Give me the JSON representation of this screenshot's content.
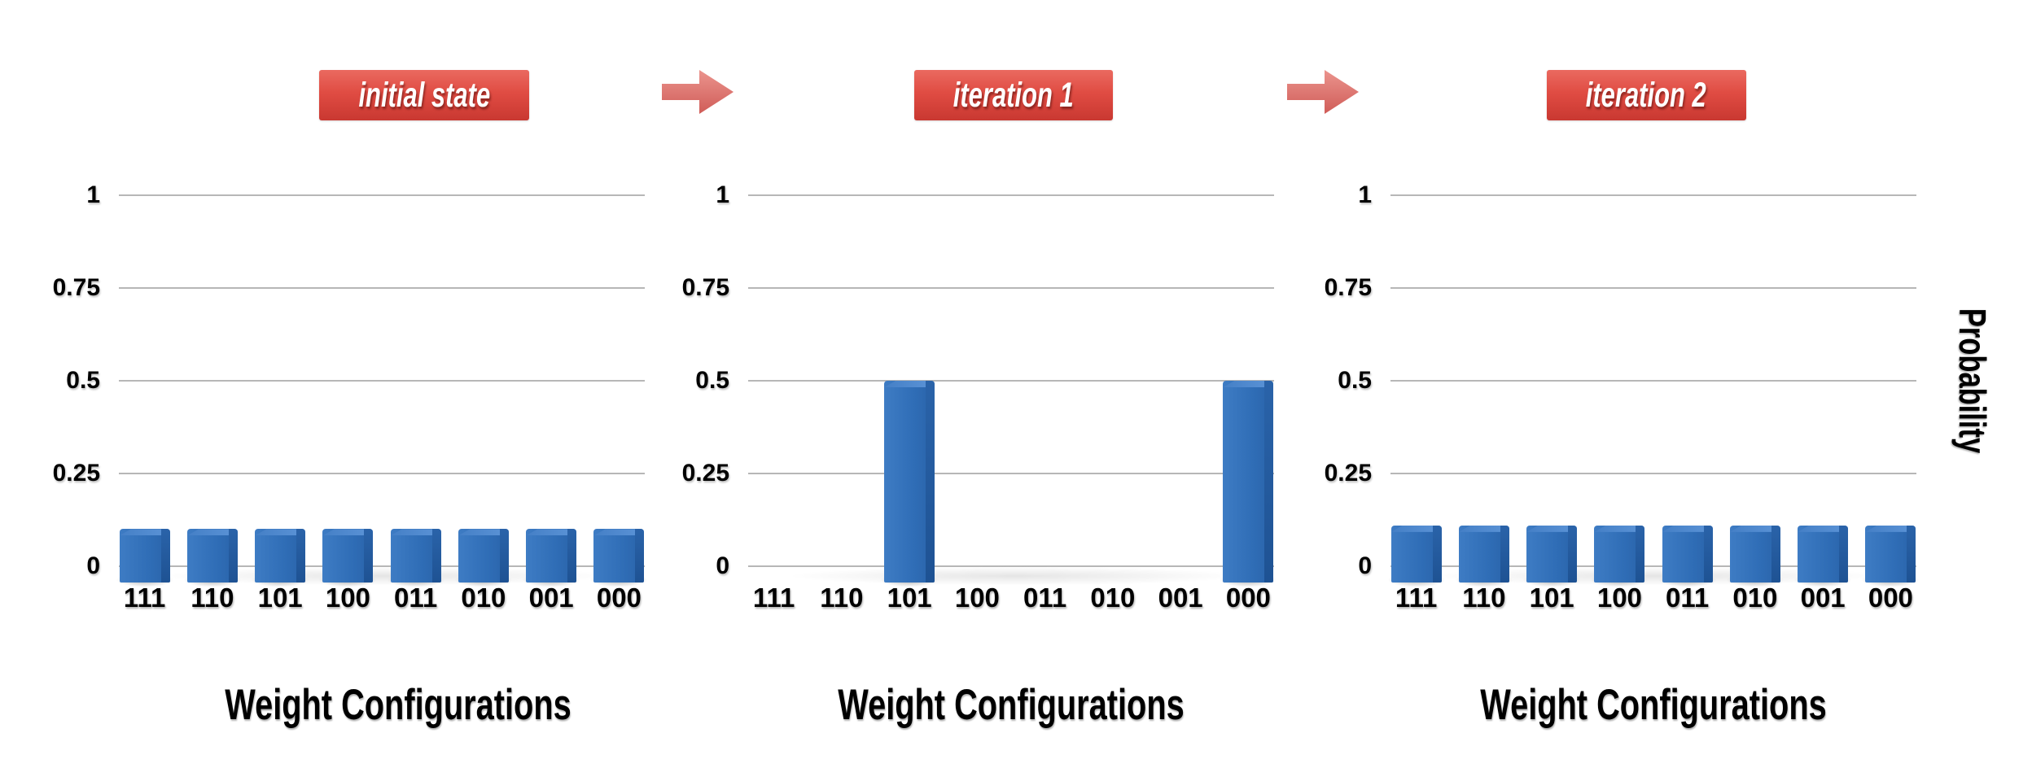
{
  "figure": {
    "y_axis_title": "Probability",
    "x_axis_title": "Weight Configurations",
    "stage_labels": [
      "initial state",
      "iteration 1",
      "iteration 2"
    ],
    "transition_icon": "right-arrow"
  },
  "colors": {
    "bar_front": "#2f6db6",
    "bar_front_light": "#3e7cc4",
    "bar_side": "#1e5293",
    "bar_top": "#5c94d7",
    "badge_top": "#ea6a60",
    "badge_bottom": "#c93831",
    "badge_text": "#ffffff",
    "arrow_top": "#eb948e",
    "arrow_bottom": "#d05c58",
    "gridline": "#b7b7b7",
    "text": "#000000",
    "background": "#ffffff"
  },
  "chart_data": [
    {
      "type": "bar",
      "title": "initial state",
      "categories": [
        "111",
        "110",
        "101",
        "100",
        "011",
        "010",
        "001",
        "000"
      ],
      "values": [
        0.1,
        0.1,
        0.1,
        0.1,
        0.1,
        0.1,
        0.1,
        0.1
      ],
      "xlabel": "Weight Configurations",
      "ylabel": "Probability",
      "ylim": [
        0,
        1
      ],
      "yticks": [
        "1",
        "0.75",
        "0.5",
        "0.25",
        "0"
      ],
      "ytick_values": [
        1,
        0.75,
        0.5,
        0.25,
        0
      ],
      "grid": true,
      "legend": false,
      "bar_color": "#2f6db6"
    },
    {
      "type": "bar",
      "title": "iteration 1",
      "categories": [
        "111",
        "110",
        "101",
        "100",
        "011",
        "010",
        "001",
        "000"
      ],
      "values": [
        0,
        0,
        0.5,
        0,
        0,
        0,
        0,
        0.5
      ],
      "xlabel": "Weight Configurations",
      "ylabel": "Probability",
      "ylim": [
        0,
        1
      ],
      "yticks": [
        "1",
        "0.75",
        "0.5",
        "0.25",
        "0"
      ],
      "ytick_values": [
        1,
        0.75,
        0.5,
        0.25,
        0
      ],
      "grid": true,
      "legend": false,
      "bar_color": "#2f6db6"
    },
    {
      "type": "bar",
      "title": "iteration 2",
      "categories": [
        "111",
        "110",
        "101",
        "100",
        "011",
        "010",
        "001",
        "000"
      ],
      "values": [
        0.11,
        0.11,
        0.11,
        0.11,
        0.11,
        0.11,
        0.11,
        0.11
      ],
      "xlabel": "Weight Configurations",
      "ylabel": "Probability",
      "ylim": [
        0,
        1
      ],
      "yticks": [
        "1",
        "0.75",
        "0.5",
        "0.25",
        "0"
      ],
      "ytick_values": [
        1,
        0.75,
        0.5,
        0.25,
        0
      ],
      "grid": true,
      "legend": false,
      "bar_color": "#2f6db6"
    }
  ]
}
